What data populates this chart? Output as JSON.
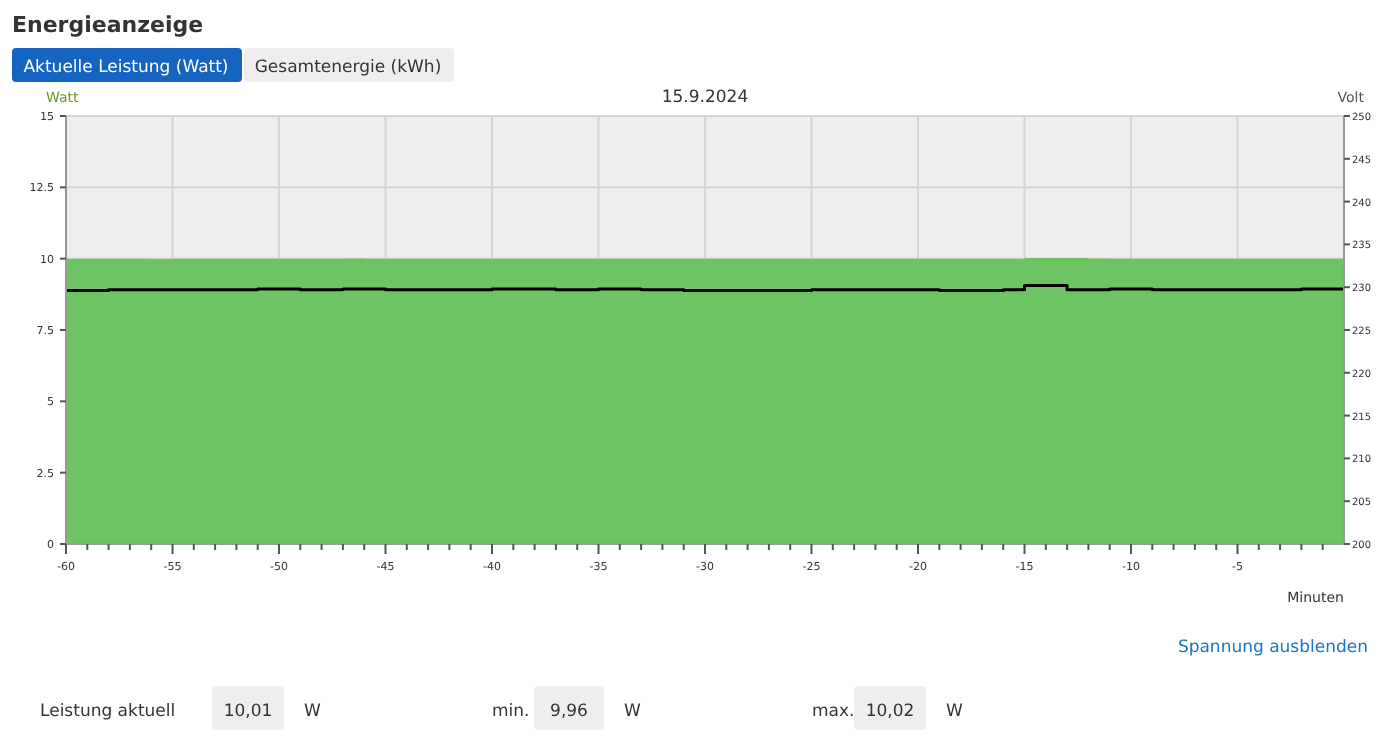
{
  "chart_data": {
    "type": "area",
    "title": "Energieanzeige",
    "subtitle": "15.9.2024",
    "xlabel": "Minuten",
    "ylabel": "Watt",
    "y2label": "Volt",
    "x": [
      -60,
      -59,
      -58,
      -57,
      -56,
      -55,
      -54,
      -53,
      -52,
      -51,
      -50,
      -49,
      -48,
      -47,
      -46,
      -45,
      -44,
      -43,
      -42,
      -41,
      -40,
      -39,
      -38,
      -37,
      -36,
      -35,
      -34,
      -33,
      -32,
      -31,
      -30,
      -29,
      -28,
      -27,
      -26,
      -25,
      -24,
      -23,
      -22,
      -21,
      -20,
      -19,
      -18,
      -17,
      -16,
      -15,
      -14,
      -13,
      -12,
      -11,
      -10,
      -9,
      -8,
      -7,
      -6,
      -5,
      -4,
      -3,
      -2,
      -1,
      0
    ],
    "series": [
      {
        "color": "#6cc462",
        "values": [
          10.0,
          10.0,
          10.0,
          10.0,
          9.99,
          10.0,
          10.0,
          10.0,
          10.0,
          10.0,
          10.0,
          10.0,
          10.0,
          10.01,
          10.0,
          10.0,
          10.0,
          10.0,
          10.0,
          10.0,
          10.0,
          10.0,
          10.0,
          10.0,
          10.0,
          10.0,
          10.0,
          10.0,
          10.0,
          10.0,
          10.0,
          10.0,
          10.0,
          10.0,
          10.0,
          10.0,
          10.0,
          10.0,
          10.0,
          10.0,
          10.0,
          10.0,
          10.0,
          10.0,
          10.0,
          10.02,
          10.02,
          10.02,
          10.01,
          10.0,
          10.0,
          10.0,
          10.0,
          10.0,
          10.0,
          10.0,
          10.0,
          10.0,
          10.0,
          10.0,
          10.01
        ]
      },
      {
        "type": "line",
        "axis": "y2",
        "color": "#000000",
        "values": [
          229.6,
          229.6,
          229.7,
          229.7,
          229.7,
          229.7,
          229.7,
          229.7,
          229.7,
          229.8,
          229.8,
          229.7,
          229.7,
          229.8,
          229.8,
          229.7,
          229.7,
          229.7,
          229.7,
          229.7,
          229.8,
          229.8,
          229.8,
          229.7,
          229.7,
          229.8,
          229.8,
          229.7,
          229.7,
          229.6,
          229.6,
          229.6,
          229.6,
          229.6,
          229.6,
          229.7,
          229.7,
          229.7,
          229.7,
          229.7,
          229.7,
          229.6,
          229.6,
          229.6,
          229.7,
          230.2,
          230.2,
          229.7,
          229.7,
          229.8,
          229.8,
          229.7,
          229.7,
          229.7,
          229.7,
          229.7,
          229.7,
          229.7,
          229.8,
          229.8,
          229.8
        ]
      }
    ],
    "xlim": [
      -60,
      0
    ],
    "xticks": [
      -60,
      {
        "value": -59,
        "label": null
      },
      {
        "value": -58,
        "label": null
      },
      {
        "value": -57,
        "label": null
      },
      {
        "value": -56,
        "label": null
      },
      -55,
      {
        "value": -54,
        "label": null
      },
      {
        "value": -53,
        "label": null
      },
      {
        "value": -52,
        "label": null
      },
      {
        "value": -51,
        "label": null
      },
      -50,
      {
        "value": -49,
        "label": null
      },
      {
        "value": -48,
        "label": null
      },
      {
        "value": -47,
        "label": null
      },
      {
        "value": -46,
        "label": null
      },
      -45,
      {
        "value": -44,
        "label": null
      },
      {
        "value": -43,
        "label": null
      },
      {
        "value": -42,
        "label": null
      },
      {
        "value": -41,
        "label": null
      },
      -40,
      {
        "value": -39,
        "label": null
      },
      {
        "value": -38,
        "label": null
      },
      {
        "value": -37,
        "label": null
      },
      {
        "value": -36,
        "label": null
      },
      -35,
      {
        "value": -34,
        "label": null
      },
      {
        "value": -33,
        "label": null
      },
      {
        "value": -32,
        "label": null
      },
      {
        "value": -31,
        "label": null
      },
      -30,
      {
        "value": -29,
        "label": null
      },
      {
        "value": -28,
        "label": null
      },
      {
        "value": -27,
        "label": null
      },
      {
        "value": -26,
        "label": null
      },
      -25,
      {
        "value": -24,
        "label": null
      },
      {
        "value": -23,
        "label": null
      },
      {
        "value": -22,
        "label": null
      },
      {
        "value": -21,
        "label": null
      },
      -20,
      {
        "value": -19,
        "label": null
      },
      {
        "value": -18,
        "label": null
      },
      {
        "value": -17,
        "label": null
      },
      {
        "value": -16,
        "label": null
      },
      -15,
      {
        "value": -14,
        "label": null
      },
      {
        "value": -13,
        "label": null
      },
      {
        "value": -12,
        "label": null
      },
      {
        "value": -11,
        "label": null
      },
      -10,
      {
        "value": -9,
        "label": null
      },
      {
        "value": -8,
        "label": null
      },
      {
        "value": -7,
        "label": null
      },
      {
        "value": -6,
        "label": null
      },
      -5,
      {
        "value": -4,
        "label": null
      },
      {
        "value": -3,
        "label": null
      },
      {
        "value": -2,
        "label": null
      },
      {
        "value": -1,
        "label": null
      }
    ],
    "ylim": [
      0,
      15
    ],
    "yticks": [
      0,
      2.5,
      5,
      7.5,
      10,
      12.5,
      15
    ],
    "y2lim": [
      200,
      250
    ],
    "y2ticks": [
      200,
      205,
      210,
      215,
      220,
      225,
      230,
      235,
      240,
      245,
      250
    ],
    "grid": true,
    "annotations": [
      "Aktuelle Leistung (Watt)",
      "Gesamtenergie (kWh)",
      "Spannung ausblenden",
      "Leistung aktuell",
      "10,01",
      "W",
      "min.",
      "9,96",
      "W",
      "max.",
      "10,02",
      "W"
    ]
  }
}
